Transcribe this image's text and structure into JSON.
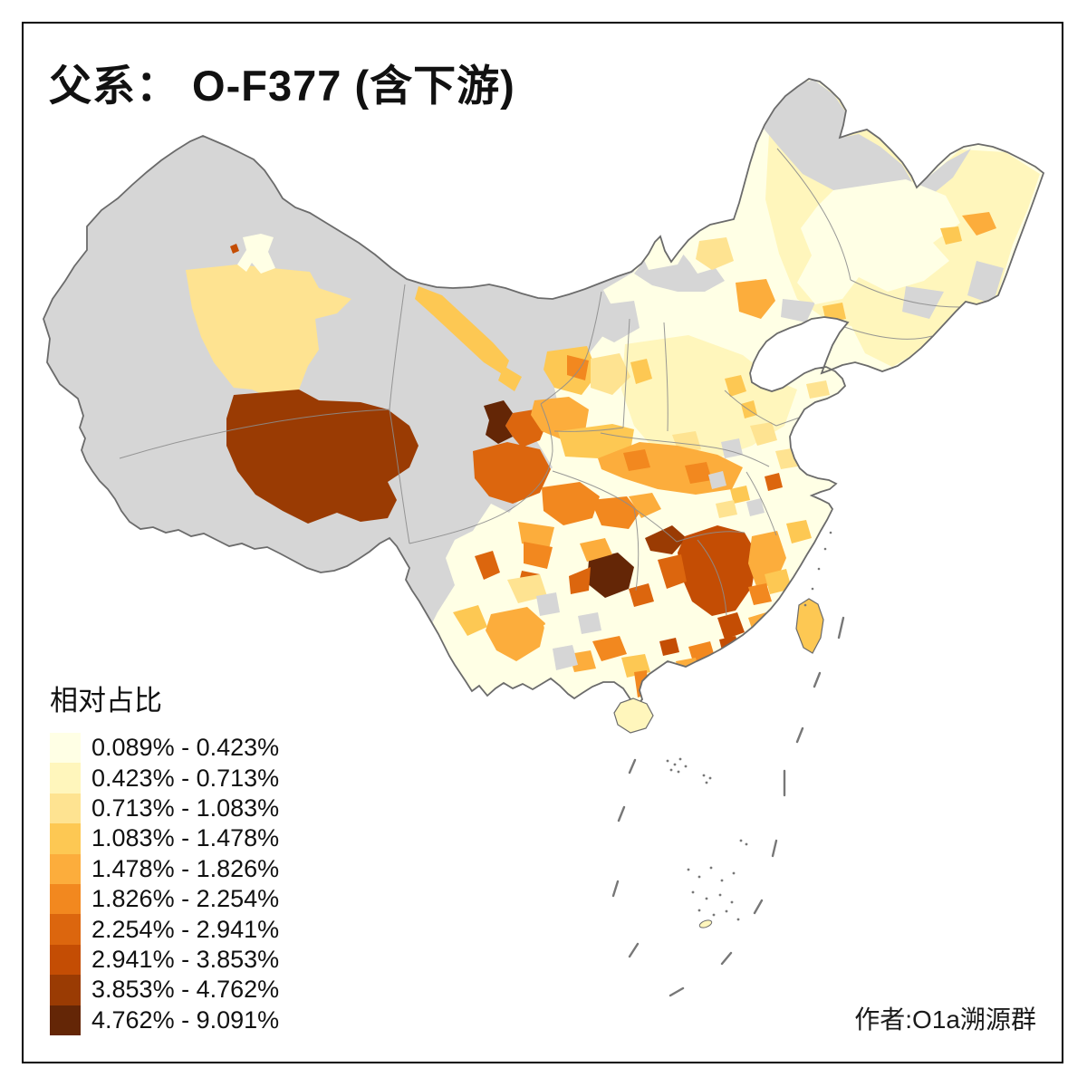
{
  "title": "父系： O-F377 (含下游)",
  "attribution": "作者:O1a溯源群",
  "legend": {
    "title": "相对占比",
    "classes": [
      {
        "range": "0.089% - 0.423%",
        "color": "#FFFFE5"
      },
      {
        "range": "0.423% - 0.713%",
        "color": "#FFF6BC"
      },
      {
        "range": "0.713% - 1.083%",
        "color": "#FEE391"
      },
      {
        "range": "1.083% - 1.478%",
        "color": "#FDC853"
      },
      {
        "range": "1.478% - 1.826%",
        "color": "#FCAD3C"
      },
      {
        "range": "1.826% - 2.254%",
        "color": "#F2881F"
      },
      {
        "range": "2.254% - 2.941%",
        "color": "#DC660E"
      },
      {
        "range": "2.941% - 3.853%",
        "color": "#C44D04"
      },
      {
        "range": "3.853% - 4.762%",
        "color": "#9A3B03"
      },
      {
        "range": "4.762% - 9.091%",
        "color": "#642606"
      }
    ]
  },
  "map": {
    "type": "choropleth",
    "area": "China, prefecture level",
    "sea_color": "#FFFFFF",
    "no_data_color": "#D6D6D6",
    "national_border_color": "#6B6B6B",
    "province_border_color": "#8D8D8D",
    "nine_dash_color": "#777777",
    "regions": [
      {
        "id": "mainland-base",
        "class": "1"
      },
      {
        "id": "ne-c2",
        "class": "2"
      },
      {
        "id": "ncp-c2",
        "class": "2"
      },
      {
        "id": "west-nodata",
        "class": "nodata"
      },
      {
        "id": "nm-border-gray",
        "class": "nodata"
      },
      {
        "id": "nm-xilingol-gray",
        "class": "nodata"
      },
      {
        "id": "hulunbuir-gray",
        "class": "nodata"
      },
      {
        "id": "hlj-gray-streak",
        "class": "nodata"
      },
      {
        "id": "hlj-gray-east",
        "class": "nodata"
      },
      {
        "id": "jilin-gray",
        "class": "nodata"
      },
      {
        "id": "arxan-gray",
        "class": "nodata"
      },
      {
        "id": "ne-cream",
        "class": "1"
      },
      {
        "id": "jiamusi-gold",
        "class": "5"
      },
      {
        "id": "ne-gold-small",
        "class": "4"
      },
      {
        "id": "liaoning-c4",
        "class": "4"
      },
      {
        "id": "xinjiang-south",
        "class": "3"
      },
      {
        "id": "urumqi-cream",
        "class": "1"
      },
      {
        "id": "urumqi-dot",
        "class": "8"
      },
      {
        "id": "qinghai-haixi",
        "class": "9"
      },
      {
        "id": "gannan-dark",
        "class": "10"
      },
      {
        "id": "gannan-orange",
        "class": "7"
      },
      {
        "id": "hexi-corridor",
        "class": "4"
      },
      {
        "id": "hexi-spur",
        "class": "4"
      },
      {
        "id": "gansu-south",
        "class": "5"
      },
      {
        "id": "ningxia-gold",
        "class": "4"
      },
      {
        "id": "ningxia-orange",
        "class": "6"
      },
      {
        "id": "shaanxi-north",
        "class": "3"
      },
      {
        "id": "chifeng-gold",
        "class": "5"
      },
      {
        "id": "tongliao-gold",
        "class": "3"
      },
      {
        "id": "nm-cream-funnel",
        "class": "1"
      },
      {
        "id": "beijing-gold",
        "class": "4"
      },
      {
        "id": "tianjin-gold",
        "class": "4"
      },
      {
        "id": "henan-c3a",
        "class": "3"
      },
      {
        "id": "henan-c3b",
        "class": "3"
      },
      {
        "id": "henan-c4",
        "class": "4"
      },
      {
        "id": "shanxi-c4",
        "class": "4"
      },
      {
        "id": "shandong-c3a",
        "class": "3"
      },
      {
        "id": "shandong-c3b",
        "class": "3"
      },
      {
        "id": "jiangsu-c3",
        "class": "3"
      },
      {
        "id": "jiangsu-c7",
        "class": "7"
      },
      {
        "id": "jiangsu-gray",
        "class": "nodata"
      },
      {
        "id": "anhui-gray",
        "class": "nodata"
      },
      {
        "id": "anhui-c4",
        "class": "4"
      },
      {
        "id": "anhui-c3",
        "class": "3"
      },
      {
        "id": "qinba-c4",
        "class": "4"
      },
      {
        "id": "hubei-c5",
        "class": "5"
      },
      {
        "id": "hubei-c6a",
        "class": "6"
      },
      {
        "id": "hubei-c6b",
        "class": "6"
      },
      {
        "id": "hubei-gray",
        "class": "nodata"
      },
      {
        "id": "sichuan-west-c7",
        "class": "7"
      },
      {
        "id": "chengdu-c6",
        "class": "6"
      },
      {
        "id": "sichuan-south-c5",
        "class": "5"
      },
      {
        "id": "liangshan-c6",
        "class": "6"
      },
      {
        "id": "panzhihua-c7",
        "class": "7"
      },
      {
        "id": "chongqing-c6",
        "class": "6"
      },
      {
        "id": "cq-east-c5",
        "class": "5"
      },
      {
        "id": "guizhou-c10",
        "class": "10"
      },
      {
        "id": "guizhou-c7a",
        "class": "7"
      },
      {
        "id": "guizhou-c7b",
        "class": "7"
      },
      {
        "id": "guizhou-c5",
        "class": "5"
      },
      {
        "id": "nw-hunan-c9",
        "class": "9"
      },
      {
        "id": "hunan-c8",
        "class": "8"
      },
      {
        "id": "hunan-c7",
        "class": "7"
      },
      {
        "id": "chenzhou-c8",
        "class": "8"
      },
      {
        "id": "gd-north-c8",
        "class": "8"
      },
      {
        "id": "jiangxi-c5",
        "class": "5"
      },
      {
        "id": "jiangxi-c6",
        "class": "6"
      },
      {
        "id": "zhejiang-c4",
        "class": "4"
      },
      {
        "id": "fujian-c4",
        "class": "4"
      },
      {
        "id": "fujian-c5",
        "class": "5"
      },
      {
        "id": "guangdong-c6",
        "class": "6"
      },
      {
        "id": "pearl-c5",
        "class": "5"
      },
      {
        "id": "gx-c8-spot",
        "class": "8"
      },
      {
        "id": "guangxi-c6",
        "class": "6"
      },
      {
        "id": "guangxi-c5",
        "class": "5"
      },
      {
        "id": "guangxi-c4",
        "class": "4"
      },
      {
        "id": "guangxi-gray",
        "class": "nodata"
      },
      {
        "id": "leizhou-c6",
        "class": "6"
      },
      {
        "id": "yunnan-c7-nw",
        "class": "7"
      },
      {
        "id": "yunnan-center-c5",
        "class": "5"
      },
      {
        "id": "yunnan-c4",
        "class": "4"
      },
      {
        "id": "yunnan-c3",
        "class": "3"
      },
      {
        "id": "yunnan-gray-a",
        "class": "nodata"
      },
      {
        "id": "yunnan-gray-b",
        "class": "nodata"
      },
      {
        "id": "yunnan-cream",
        "class": "1"
      },
      {
        "id": "taiwan",
        "class": "4"
      },
      {
        "id": "hainan",
        "class": "2"
      },
      {
        "id": "scs-islet",
        "class": "2"
      }
    ]
  }
}
